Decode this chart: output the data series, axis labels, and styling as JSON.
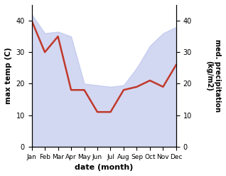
{
  "months": [
    "Jan",
    "Feb",
    "Mar",
    "Apr",
    "May",
    "Jun",
    "Jul",
    "Aug",
    "Sep",
    "Oct",
    "Nov",
    "Dec"
  ],
  "month_indices": [
    0,
    1,
    2,
    3,
    4,
    5,
    6,
    7,
    8,
    9,
    10,
    11
  ],
  "max_temp": [
    42,
    36,
    36.5,
    35,
    20,
    19.5,
    19,
    19.5,
    25,
    32,
    36,
    38
  ],
  "precipitation": [
    40,
    30,
    35,
    18,
    18,
    11,
    11,
    18,
    19,
    21,
    19,
    26
  ],
  "left_ylim": [
    0,
    45
  ],
  "left_yticks": [
    0,
    10,
    20,
    30,
    40
  ],
  "right_ylim": [
    0,
    45
  ],
  "right_yticks": [
    0,
    10,
    20,
    30,
    40
  ],
  "fill_color": "#b0b8e8",
  "fill_alpha": 0.55,
  "line_color": "#c0392b",
  "line_width": 1.8,
  "xlabel": "date (month)",
  "ylabel_left": "max temp (C)",
  "ylabel_right": "med. precipitation\n(kg/m2)",
  "bg_color": "#ffffff",
  "fig_bg": "#ffffff"
}
